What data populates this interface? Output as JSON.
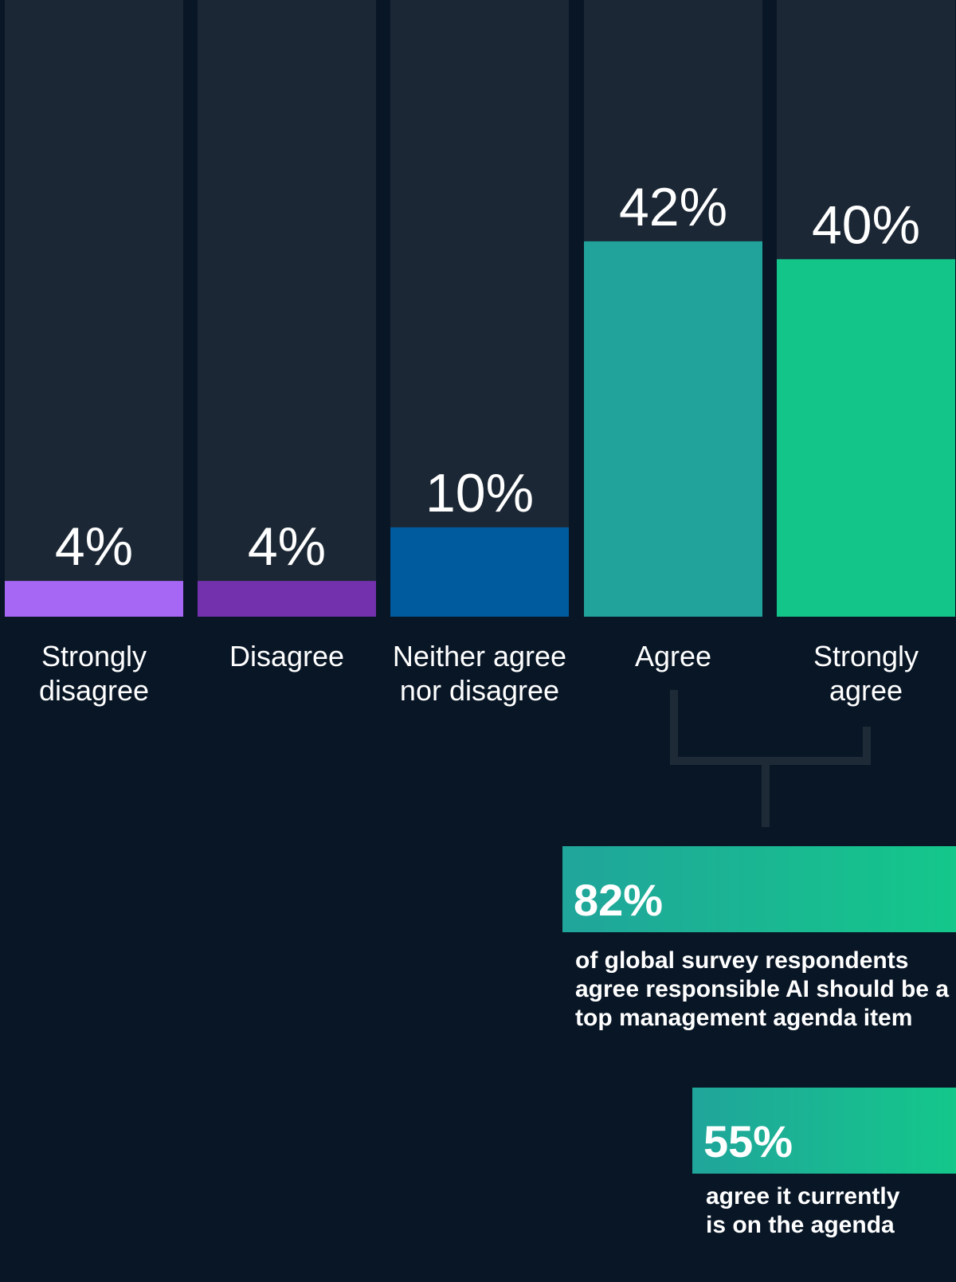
{
  "chart_data": {
    "type": "bar",
    "categories": [
      [
        "Strongly",
        "disagree"
      ],
      [
        "Disagree"
      ],
      [
        "Neither agree",
        "nor disagree"
      ],
      [
        "Agree"
      ],
      [
        "Strongly",
        "agree"
      ]
    ],
    "values": [
      4,
      4,
      10,
      42,
      40
    ],
    "value_labels": [
      "4%",
      "4%",
      "10%",
      "42%",
      "40%"
    ],
    "colors": [
      "#a767f5",
      "#7331ae",
      "#005b9e",
      "#21a39c",
      "#14c58a"
    ],
    "ylim": [
      0,
      69
    ],
    "title": "",
    "xlabel": "",
    "ylabel": ""
  },
  "callouts": [
    {
      "value": "82%",
      "lines": [
        "of global survey respondents",
        "agree responsible AI should be a",
        "top management agenda item"
      ]
    },
    {
      "value": "55%",
      "lines": [
        "agree it currently",
        "is on the agenda"
      ]
    }
  ]
}
